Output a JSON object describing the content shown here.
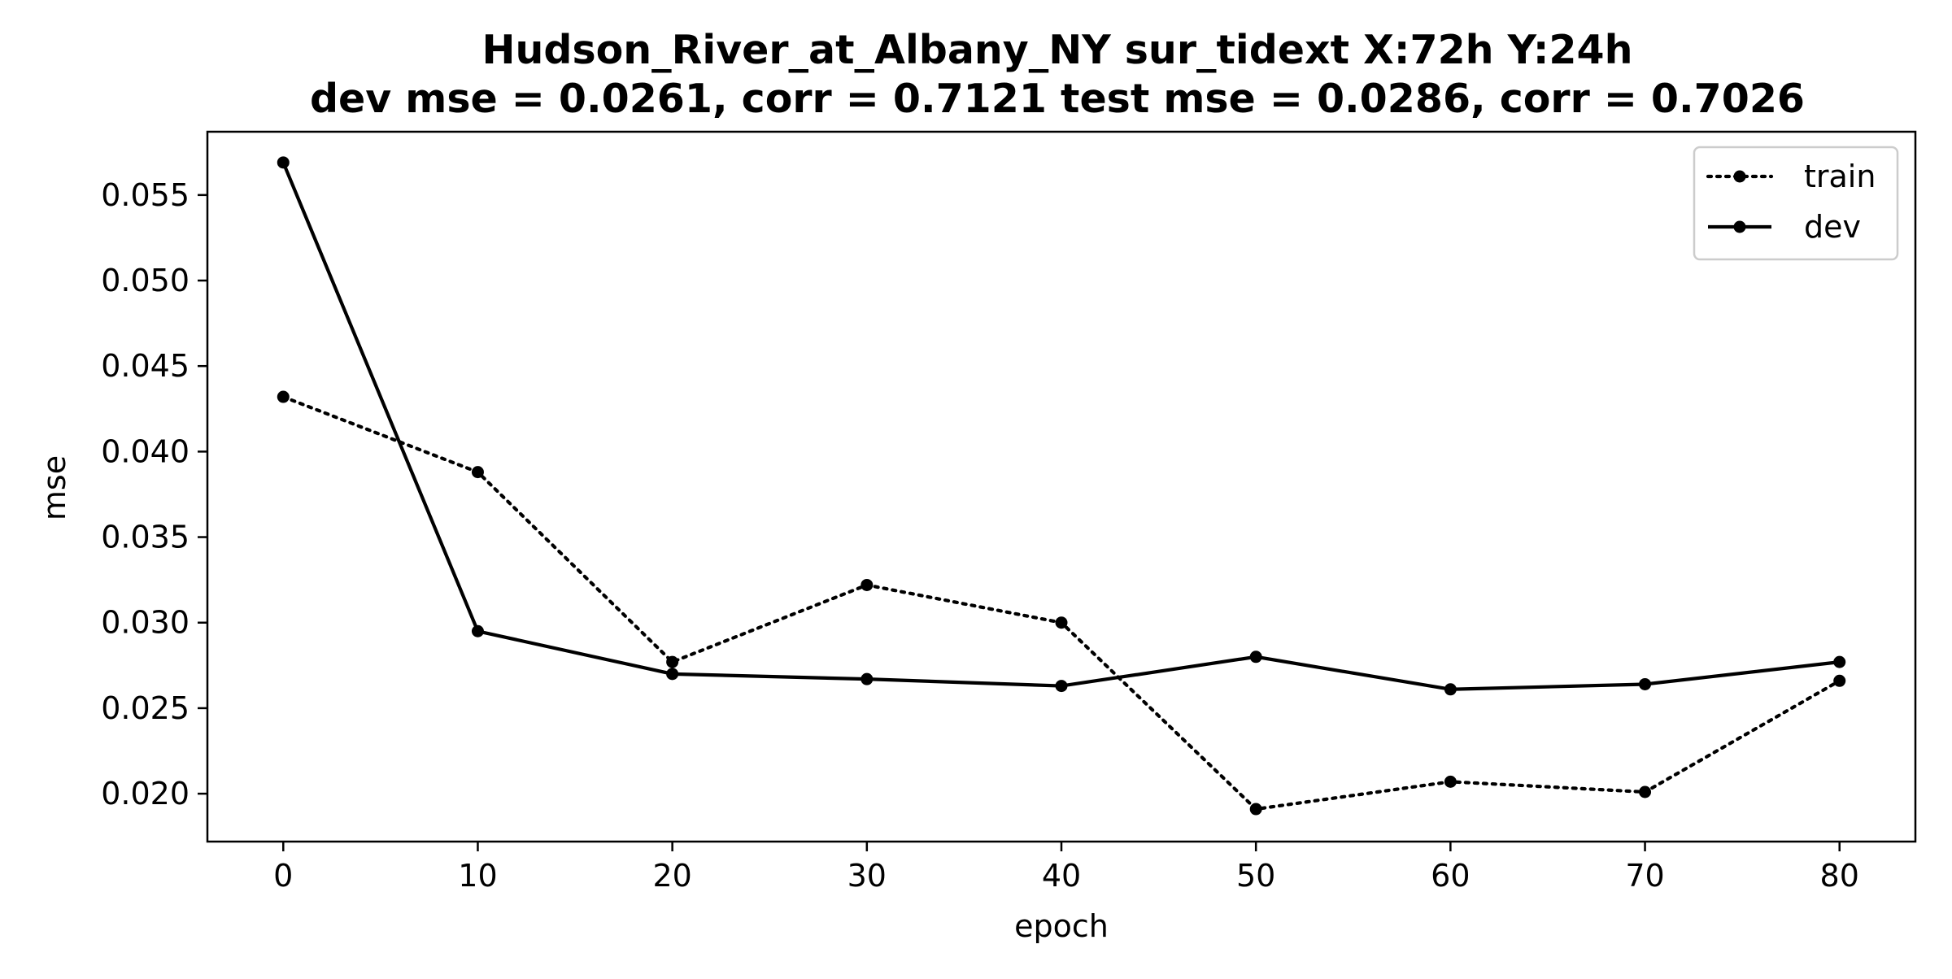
{
  "chart_data": {
    "type": "line",
    "title": "Hudson_River_at_Albany_NY   sur_tidext   X:72h   Y:24h",
    "subtitle": "dev mse = 0.0261, corr = 0.7121   test mse = 0.0286, corr = 0.7026",
    "xlabel": "epoch",
    "ylabel": "mse",
    "x": [
      0,
      10,
      20,
      30,
      40,
      50,
      60,
      70,
      80
    ],
    "xlim": [
      -3.9,
      83.9
    ],
    "ylim": [
      0.0172,
      0.0587
    ],
    "xticks": [
      0,
      10,
      20,
      30,
      40,
      50,
      60,
      70,
      80
    ],
    "yticks": [
      0.02,
      0.025,
      0.03,
      0.035,
      0.04,
      0.045,
      0.05,
      0.055
    ],
    "ytick_labels": [
      "0.020",
      "0.025",
      "0.030",
      "0.035",
      "0.040",
      "0.045",
      "0.050",
      "0.055"
    ],
    "grid": false,
    "legend_position": "top-right",
    "series": [
      {
        "name": "train",
        "line_style": "dotted",
        "marker": "circle",
        "color": "#000000",
        "values": [
          0.0432,
          0.0388,
          0.0277,
          0.0322,
          0.03,
          0.0191,
          0.0207,
          0.0201,
          0.0266
        ]
      },
      {
        "name": "dev",
        "line_style": "solid",
        "marker": "circle",
        "color": "#000000",
        "values": [
          0.0569,
          0.0295,
          0.027,
          0.0267,
          0.0263,
          0.028,
          0.0261,
          0.0264,
          0.0277
        ]
      }
    ]
  }
}
